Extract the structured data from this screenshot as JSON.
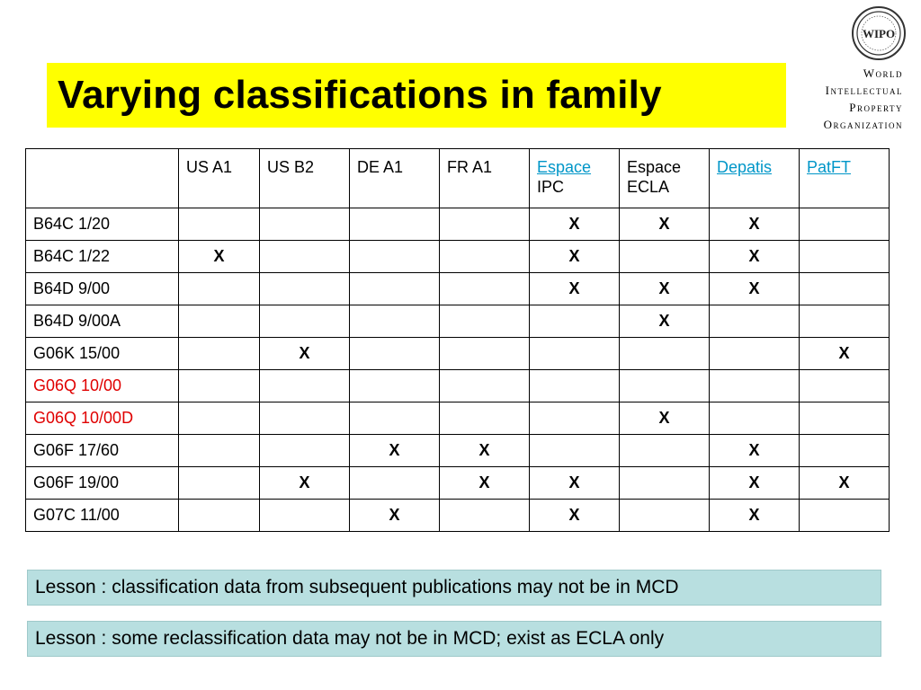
{
  "title": "Varying classifications in family",
  "org": {
    "logo_text": "WIPO",
    "line1": "World",
    "line2": "Intellectual",
    "line3": "Property",
    "line4": "Organization"
  },
  "table": {
    "corner": "",
    "columns": [
      {
        "line1": "US A1",
        "line2": "",
        "link": false
      },
      {
        "line1": "US B2",
        "line2": "",
        "link": false
      },
      {
        "line1": "DE A1",
        "line2": "",
        "link": false
      },
      {
        "line1": "FR A1",
        "line2": "",
        "link": false
      },
      {
        "line1": "Espace",
        "line2": "IPC",
        "link": true
      },
      {
        "line1": "Espace",
        "line2": "ECLA",
        "link": false
      },
      {
        "line1": "Depatis",
        "line2": "",
        "link": true
      },
      {
        "line1": "PatFT",
        "line2": "",
        "link": true
      }
    ],
    "rows": [
      {
        "label": "B64C 1/20",
        "red": false,
        "cells": [
          "",
          "",
          "",
          "",
          "X",
          "X",
          "X",
          ""
        ]
      },
      {
        "label": "B64C 1/22",
        "red": false,
        "cells": [
          "X",
          "",
          "",
          "",
          "X",
          "",
          "X",
          ""
        ]
      },
      {
        "label": "B64D 9/00",
        "red": false,
        "cells": [
          "",
          "",
          "",
          "",
          "X",
          "X",
          "X",
          ""
        ]
      },
      {
        "label": "B64D 9/00A",
        "red": false,
        "cells": [
          "",
          "",
          "",
          "",
          "",
          "X",
          "",
          ""
        ]
      },
      {
        "label": "G06K 15/00",
        "red": false,
        "cells": [
          "",
          "X",
          "",
          "",
          "",
          "",
          "",
          "X"
        ]
      },
      {
        "label": "G06Q 10/00",
        "red": true,
        "cells": [
          "",
          "",
          "",
          "",
          "",
          "",
          "",
          ""
        ]
      },
      {
        "label": "G06Q 10/00D",
        "red": true,
        "cells": [
          "",
          "",
          "",
          "",
          "",
          "X",
          "",
          ""
        ]
      },
      {
        "label": "G06F 17/60",
        "red": false,
        "cells": [
          "",
          "",
          "X",
          "X",
          "",
          "",
          "X",
          ""
        ]
      },
      {
        "label": "G06F 19/00",
        "red": false,
        "cells": [
          "",
          "X",
          "",
          "X",
          "X",
          "",
          "X",
          "X"
        ]
      },
      {
        "label": "G07C 11/00",
        "red": false,
        "cells": [
          "",
          "",
          "X",
          "",
          "X",
          "",
          "X",
          ""
        ]
      }
    ]
  },
  "lessons": [
    "Lesson : classification data from subsequent publications may not be in MCD",
    "Lesson : some reclassification data may not be in MCD; exist as ECLA only"
  ],
  "colors": {
    "title_bg": "#ffff00",
    "link": "#0096c8",
    "red_label": "#e00000",
    "lesson_bg": "#b8dfe0"
  }
}
